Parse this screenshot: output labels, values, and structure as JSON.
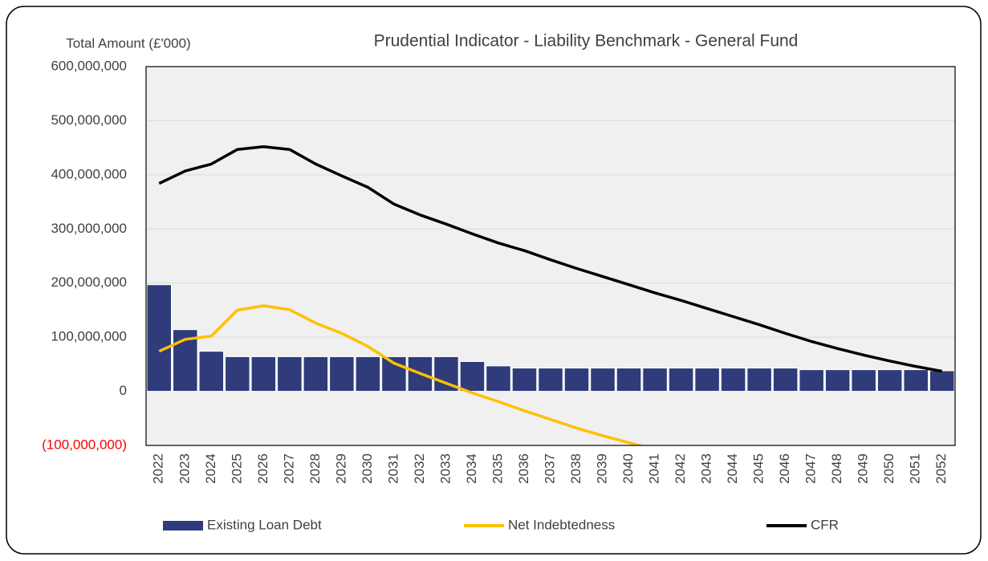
{
  "chart_data": {
    "type": "bar_line",
    "title": "Prudential Indicator - Liability Benchmark - General Fund",
    "y_label": "Total Amount (£'000)",
    "categories": [
      "2022",
      "2023",
      "2024",
      "2025",
      "2026",
      "2027",
      "2028",
      "2029",
      "2030",
      "2031",
      "2032",
      "2033",
      "2034",
      "2035",
      "2036",
      "2037",
      "2038",
      "2039",
      "2040",
      "2041",
      "2042",
      "2043",
      "2044",
      "2045",
      "2046",
      "2047",
      "2048",
      "2049",
      "2050",
      "2051",
      "2052"
    ],
    "series": [
      {
        "name": "Existing Loan Debt",
        "kind": "bar",
        "color": "#2f3b7a",
        "values": [
          197000000,
          114000000,
          74000000,
          64000000,
          64000000,
          64000000,
          64000000,
          64000000,
          64000000,
          64000000,
          64000000,
          64000000,
          55000000,
          47000000,
          43000000,
          43000000,
          43000000,
          43000000,
          43000000,
          43000000,
          43000000,
          43000000,
          43000000,
          43000000,
          43000000,
          40000000,
          40000000,
          40000000,
          40000000,
          40000000,
          38000000
        ]
      },
      {
        "name": "Net Indebtedness",
        "kind": "line",
        "color": "#ffc000",
        "values": [
          74000000,
          96000000,
          102000000,
          150000000,
          158000000,
          151000000,
          126000000,
          107000000,
          83000000,
          52000000,
          33000000,
          15000000,
          -3000000,
          -19000000,
          -36000000,
          -52000000,
          -68000000,
          -82000000,
          -95000000,
          -108000000,
          null,
          null,
          null,
          null,
          null,
          null,
          null,
          null,
          null,
          null,
          null
        ]
      },
      {
        "name": "CFR",
        "kind": "line",
        "color": "#000000",
        "values": [
          384000000,
          407000000,
          420000000,
          447000000,
          452000000,
          447000000,
          420000000,
          398000000,
          377000000,
          346000000,
          326000000,
          309000000,
          291000000,
          274000000,
          260000000,
          243000000,
          227000000,
          212000000,
          197000000,
          182000000,
          168000000,
          153000000,
          138000000,
          123000000,
          107000000,
          92000000,
          79000000,
          67000000,
          56000000,
          46000000,
          37000000
        ]
      }
    ],
    "ylim": [
      -100000000,
      600000000
    ],
    "yticks": [
      {
        "value": -100000000,
        "label": "(100,000,000)"
      },
      0,
      {
        "value": 100000000,
        "label": "100,000,000"
      },
      {
        "value": 200000000,
        "label": "200,000,000"
      },
      {
        "value": 300000000,
        "label": "300,000,000"
      },
      {
        "value": 400000000,
        "label": "400,000,000"
      },
      {
        "value": 500000000,
        "label": "500,000,000"
      },
      {
        "value": 600000000,
        "label": "600,000,000"
      }
    ],
    "negative_tick_color": "#ff0000",
    "grid": true,
    "plot_background": "#f0f0f0",
    "legend": "bottom"
  }
}
